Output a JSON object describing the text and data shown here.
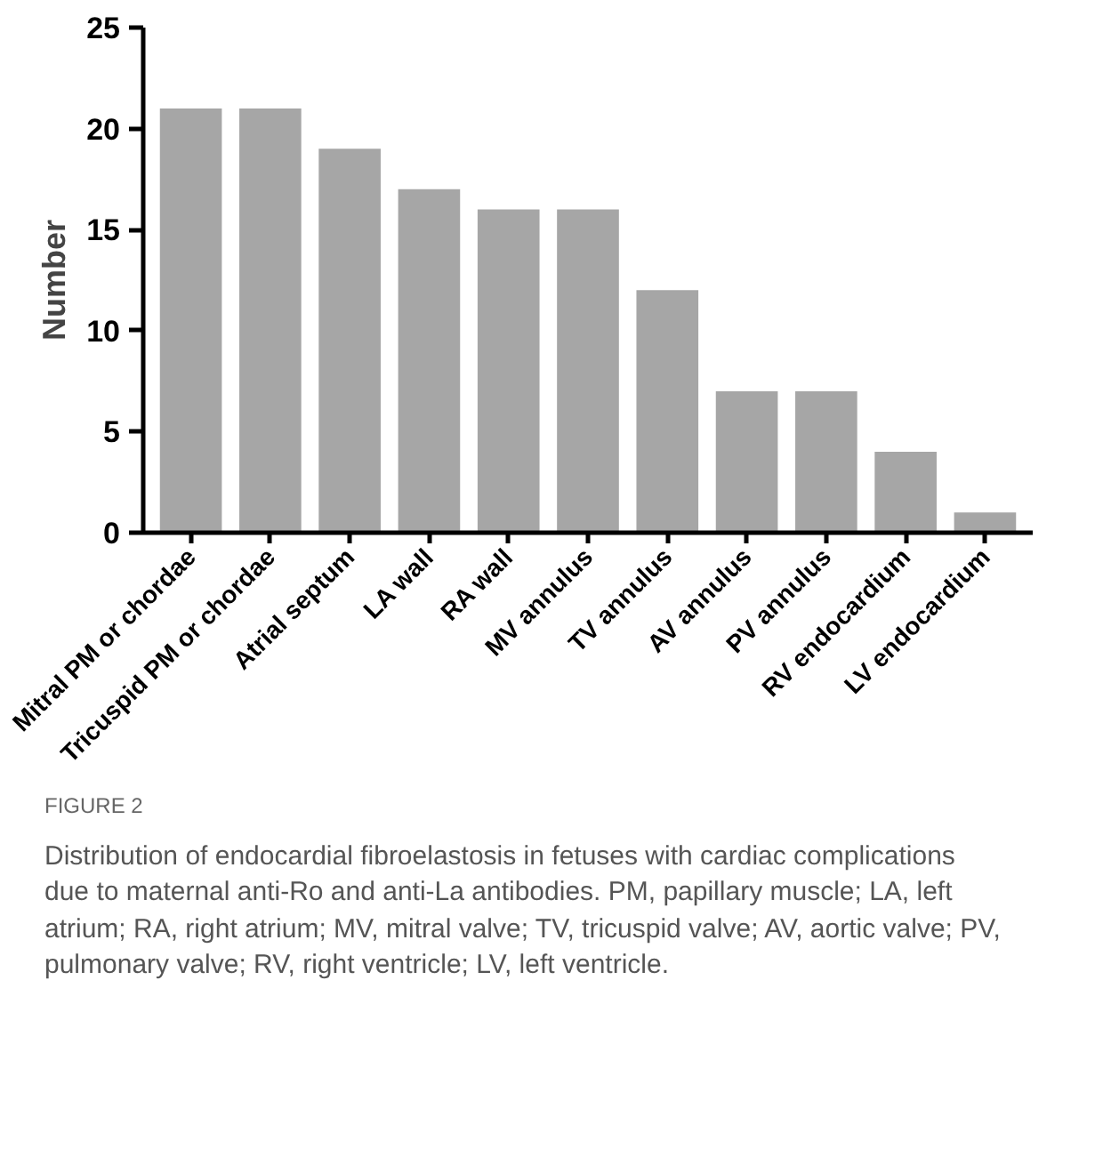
{
  "chart_data": {
    "type": "bar",
    "ylabel": "Number",
    "categories": [
      "Mitral PM or chordae",
      "Tricuspid PM or chordae",
      "Atrial septum",
      "LA wall",
      "RA wall",
      "MV annulus",
      "TV annulus",
      "AV annulus",
      "PV annulus",
      "RV endocardium",
      "LV endocardium"
    ],
    "values": [
      21,
      21,
      19,
      17,
      16,
      16,
      12,
      7,
      7,
      4,
      1
    ],
    "color": "#a6a6a6",
    "ylim": [
      0,
      25
    ],
    "yticks": [
      0,
      5,
      10,
      15,
      20,
      25
    ],
    "grid": false,
    "annotations": [
      "FIGURE 2",
      "Distribution of endocardial fibroelastosis in fetuses with cardiac complications due to maternal anti-Ro and anti-La antibodies. PM, papillary muscle; LA, left atrium; RA, right atrium; MV, mitral valve; TV, tricuspid valve; AV, aortic valve; PV, pulmonary valve; RV, right ventricle; LV, left ventricle."
    ]
  }
}
